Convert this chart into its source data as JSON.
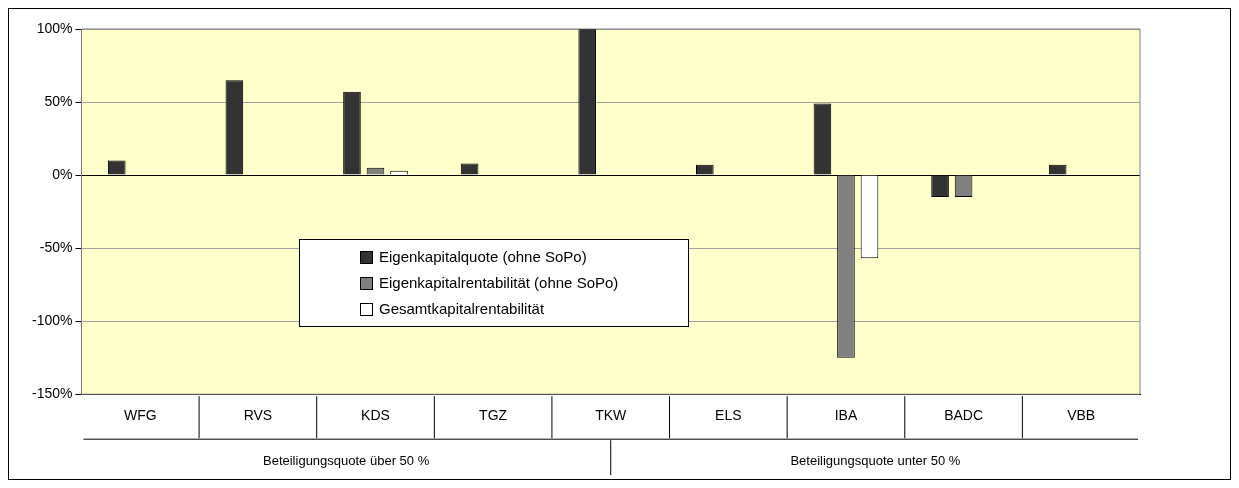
{
  "chart_data": {
    "type": "bar",
    "categories": [
      "WFG",
      "RVS",
      "KDS",
      "TGZ",
      "TKW",
      "ELS",
      "IBA",
      "BADC",
      "VBB"
    ],
    "series": [
      {
        "name": "Eigenkapitalquote (ohne SoPo)",
        "color": "#333333",
        "values": [
          10,
          65,
          57,
          8,
          100,
          7,
          49,
          -15,
          7
        ]
      },
      {
        "name": "Eigenkapitalrentabilität (ohne SoPo)",
        "color": "#808080",
        "values": [
          0,
          0,
          5,
          0,
          0,
          0,
          -125,
          -15,
          0
        ]
      },
      {
        "name": "Gesamtkapitalrentabilität",
        "color": "#ffffff",
        "values": [
          0,
          0,
          3,
          0,
          0,
          0,
          -57,
          0,
          0
        ]
      }
    ],
    "ylim": [
      -150,
      100
    ],
    "yticks": [
      {
        "value": -150,
        "label": "-150%"
      },
      {
        "value": -100,
        "label": "-100%"
      },
      {
        "value": -50,
        "label": "-50%"
      },
      {
        "value": 0,
        "label": "0%"
      },
      {
        "value": 50,
        "label": "50%"
      },
      {
        "value": 100,
        "label": "100%"
      }
    ],
    "grid": "y",
    "legend": "bottom left",
    "annotations": [
      "Beteiligungsquote über 50 %",
      "Beteiligungsquote unter 50 %"
    ]
  }
}
